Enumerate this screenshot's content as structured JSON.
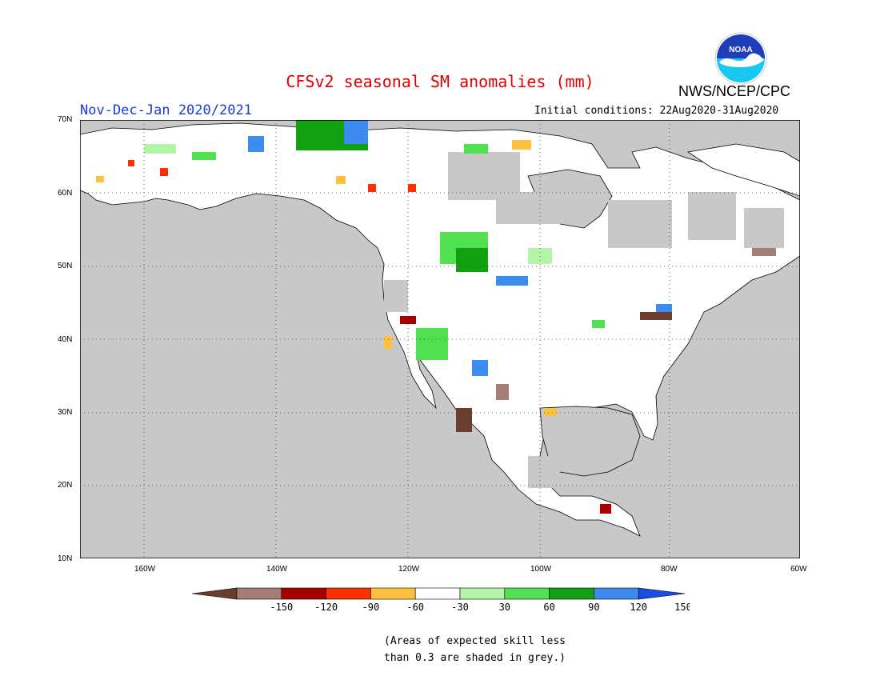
{
  "header": {
    "title": "CFSv2 seasonal SM anomalies (mm)",
    "period": "Nov-Dec-Jan 2020/2021",
    "org": "NWS/NCEP/CPC",
    "initial_conditions": "Initial conditions: 22Aug2020-31Aug2020",
    "logo_text": "NOAA"
  },
  "map": {
    "lat_labels": [
      "70N",
      "60N",
      "50N",
      "40N",
      "30N",
      "20N",
      "10N"
    ],
    "lon_labels": [
      "160W",
      "140W",
      "120W",
      "100W",
      "80W",
      "60W"
    ],
    "land_color": "#ffffff",
    "low_skill_color": "#c8c8c8",
    "grid_style": "dotted"
  },
  "legend": {
    "tick_labels": [
      "-150",
      "-120",
      "-90",
      "-60",
      "-30",
      "30",
      "60",
      "90",
      "120",
      "150"
    ],
    "colors": [
      "#6b3d2f",
      "#a47d74",
      "#a80000",
      "#ff3000",
      "#ffc040",
      "#ffffff",
      "#b4f4a8",
      "#50e050",
      "#10a010",
      "#3c8cf0",
      "#1a4ee0"
    ]
  },
  "footnote": {
    "line1": "(Areas of expected skill less",
    "line2": "than 0.3 are shaded in grey.)"
  }
}
